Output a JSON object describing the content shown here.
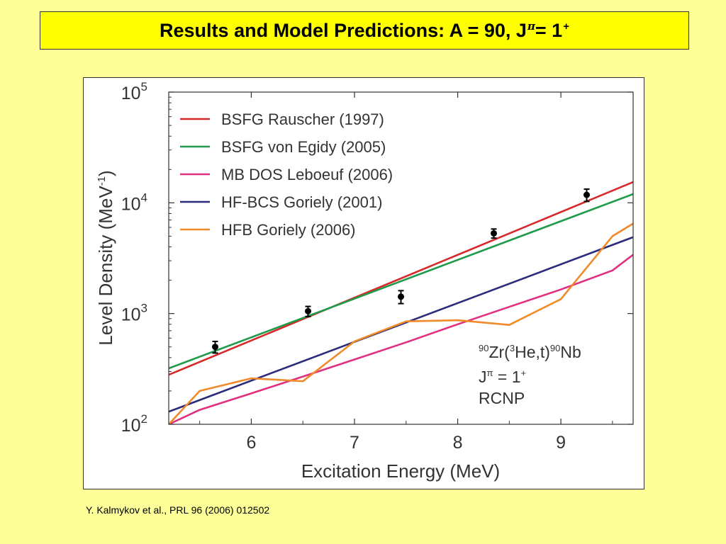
{
  "title": {
    "main": "Results and Model Predictions: A = 90, J",
    "pi": "π",
    "mid": " = 1",
    "sup": "+"
  },
  "citation": "Y. Kalmykov et al., PRL 96 (2006) 012502",
  "chart_data": {
    "type": "line",
    "xlabel": "Excitation Energy (MeV)",
    "ylabel": "Level Density (MeV",
    "ylabel_sup": "-1",
    "ylabel_end": ")",
    "xlim": [
      5.2,
      9.7
    ],
    "ylim": [
      100,
      100000
    ],
    "yscale": "log",
    "xticks": [
      6,
      7,
      8,
      9
    ],
    "yticks": [
      {
        "value": 100,
        "base": "10",
        "exp": "2"
      },
      {
        "value": 1000,
        "base": "10",
        "exp": "3"
      },
      {
        "value": 10000,
        "base": "10",
        "exp": "4"
      },
      {
        "value": 100000,
        "base": "10",
        "exp": "5"
      }
    ],
    "legend_position": "top-left",
    "series": [
      {
        "name": "BSFG Rauscher (1997)",
        "color": "#d62a2a",
        "x": [
          5.2,
          9.7
        ],
        "y": [
          280,
          15400
        ]
      },
      {
        "name": "BSFG von Egidy (2005)",
        "color": "#1e9a4a",
        "x": [
          5.2,
          9.7
        ],
        "y": [
          320,
          12000
        ]
      },
      {
        "name": "MB DOS Leboeuf (2006)",
        "color": "#e0307f",
        "x": [
          5.2,
          5.5,
          6,
          6.5,
          7,
          7.5,
          8,
          8.5,
          9,
          9.5,
          9.7
        ],
        "y": [
          100,
          135,
          190,
          270,
          385,
          550,
          800,
          1150,
          1650,
          2450,
          3400
        ]
      },
      {
        "name": "HF-BCS Goriely (2001)",
        "color": "#2b2d7a",
        "x": [
          5.2,
          9.7
        ],
        "y": [
          130,
          4900
        ]
      },
      {
        "name": "HFB Goriely (2006)",
        "color": "#f08a2a",
        "x": [
          5.2,
          5.5,
          6.0,
          6.5,
          7.0,
          7.5,
          8.0,
          8.5,
          9.0,
          9.5,
          9.7
        ],
        "y": [
          100,
          200,
          260,
          245,
          560,
          850,
          870,
          790,
          1350,
          5000,
          6500
        ]
      }
    ],
    "data_points": {
      "x": [
        5.65,
        6.55,
        7.45,
        8.35,
        9.25
      ],
      "y": [
        500,
        1050,
        1420,
        5300,
        11800
      ],
      "err": [
        60,
        110,
        190,
        500,
        1500
      ],
      "color": "#000000"
    },
    "annotation": {
      "line1_pre_sup": "90",
      "line1_a": "Zr(",
      "line1_sup2": "3",
      "line1_b": "He,t)",
      "line1_sup3": "90",
      "line1_c": "Nb",
      "line2_a": "J",
      "line2_pi": "π",
      "line2_b": " = 1",
      "line2_sup": "+",
      "line3": "RCNP"
    }
  }
}
